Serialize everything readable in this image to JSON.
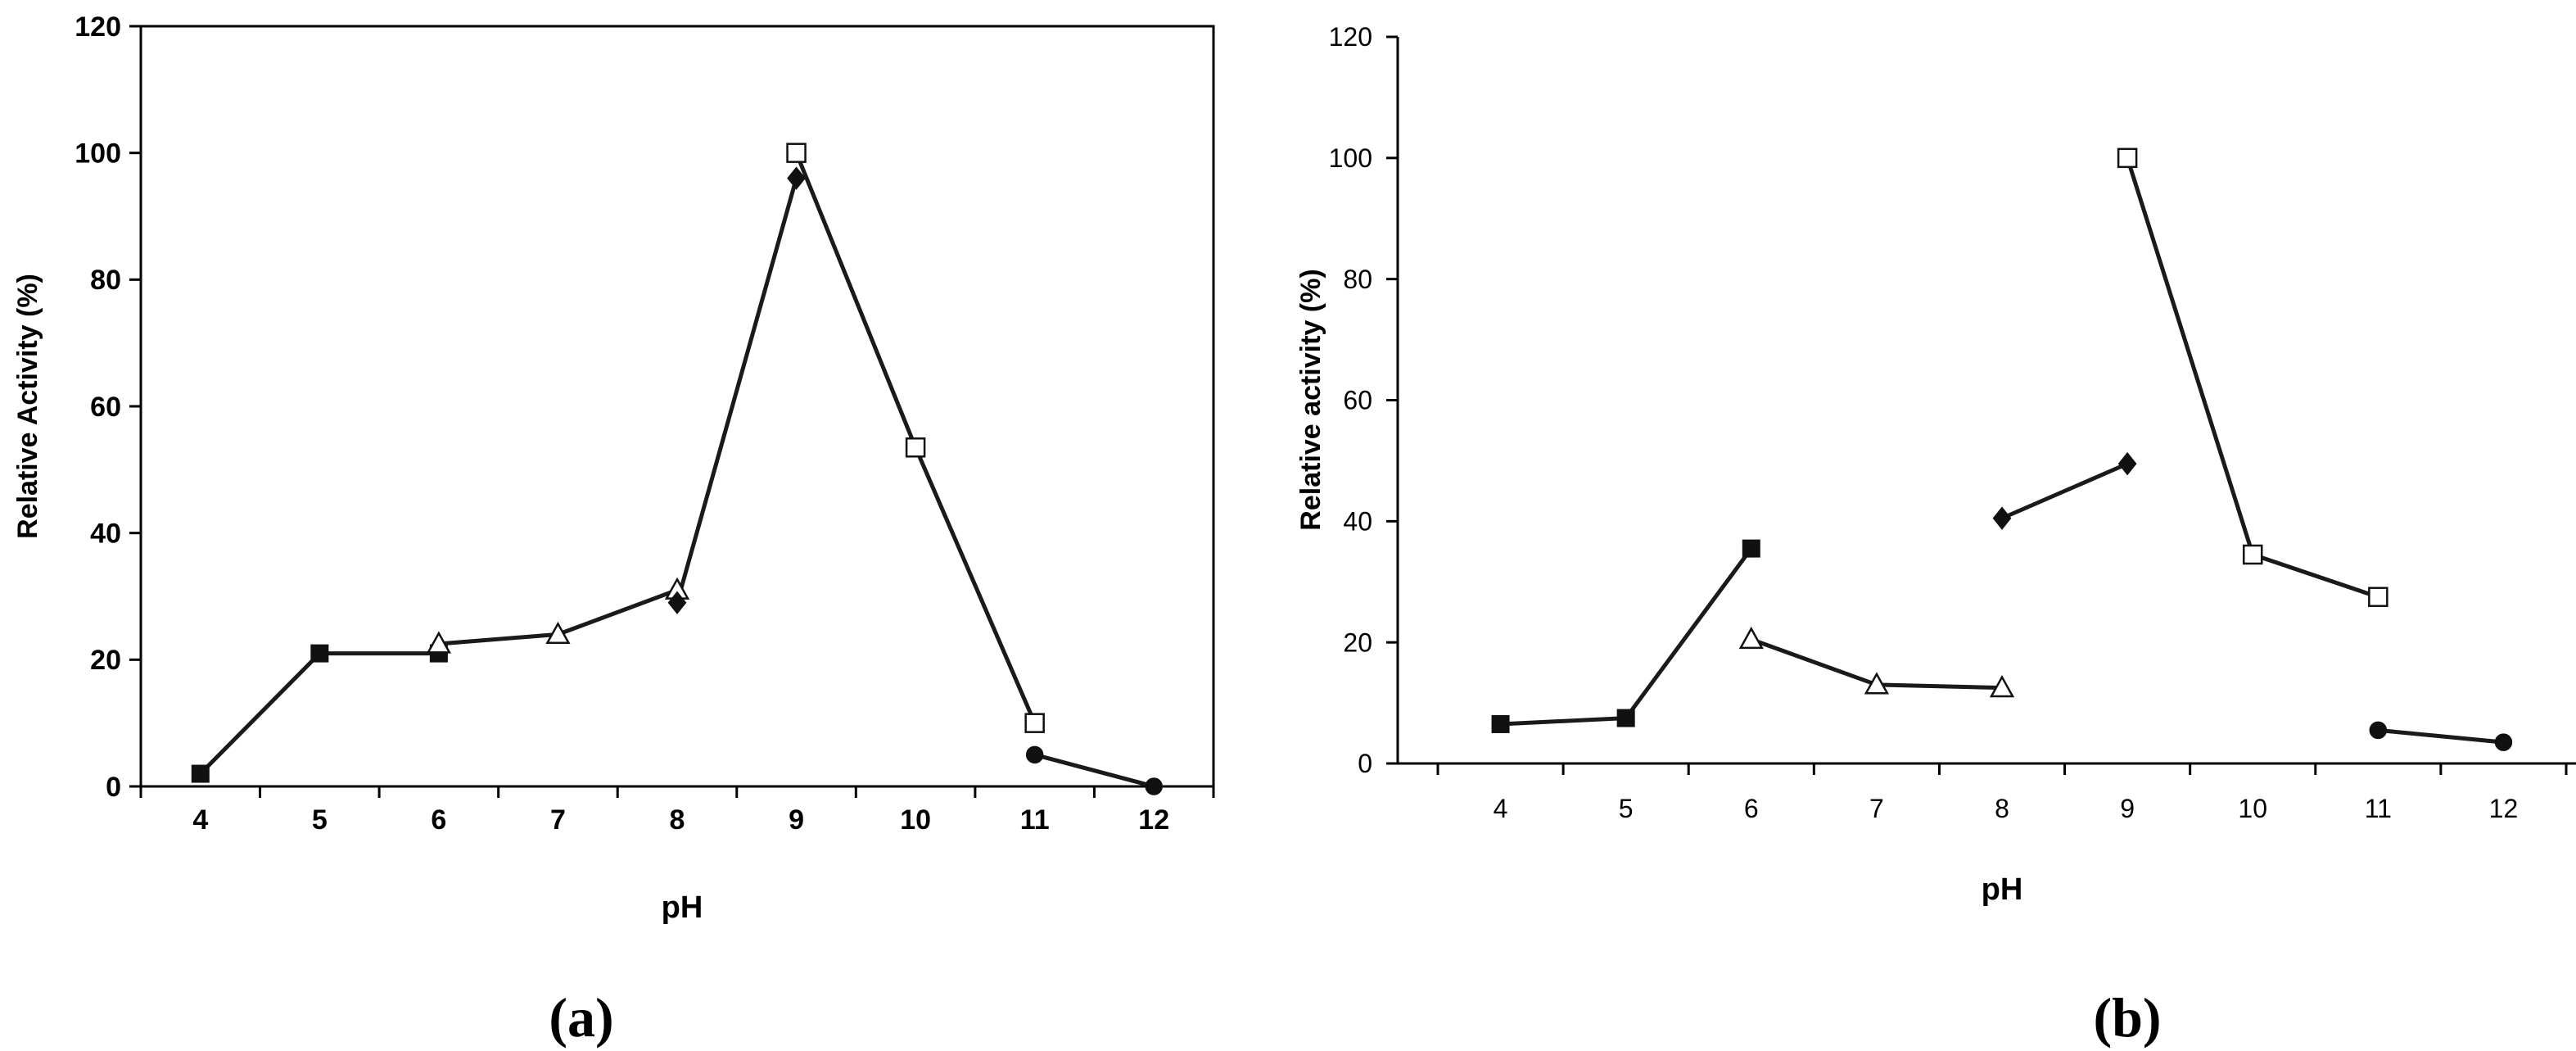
{
  "panel_labels": [
    "(a)",
    "(b)"
  ],
  "chart_data": [
    {
      "type": "line",
      "panel": "(a)",
      "xlabel": "pH",
      "ylabel": "Relative Activity (%)",
      "xticks": [
        "4",
        "5",
        "6",
        "7",
        "8",
        "9",
        "10",
        "11",
        "12"
      ],
      "yticks": [
        "0",
        "20",
        "40",
        "60",
        "80",
        "100",
        "120"
      ],
      "xlim": [
        3.5,
        12.5
      ],
      "ylim": [
        0,
        120
      ],
      "frame": "full box",
      "series": [
        {
          "marker": "filled-square",
          "points": [
            [
              4,
              2
            ],
            [
              5,
              21
            ],
            [
              6,
              21
            ]
          ]
        },
        {
          "marker": "open-triangle",
          "points": [
            [
              6,
              22.5
            ],
            [
              7,
              24
            ],
            [
              8,
              31
            ]
          ]
        },
        {
          "marker": "filled-diamond",
          "points": [
            [
              8,
              29
            ],
            [
              9,
              96
            ]
          ]
        },
        {
          "marker": "open-square",
          "points": [
            [
              9,
              100
            ],
            [
              10,
              53.5
            ],
            [
              11,
              10
            ]
          ]
        },
        {
          "marker": "filled-circle",
          "points": [
            [
              11,
              5
            ],
            [
              12,
              0
            ]
          ]
        }
      ]
    },
    {
      "type": "line",
      "panel": "(b)",
      "xlabel": "pH",
      "ylabel": "Relative activity (%)",
      "xticks": [
        "4",
        "5",
        "6",
        "7",
        "8",
        "9",
        "10",
        "11",
        "12"
      ],
      "yticks": [
        "0",
        "20",
        "40",
        "60",
        "80",
        "100",
        "120"
      ],
      "xlim": [
        3.5,
        12.5
      ],
      "ylim": [
        0,
        120
      ],
      "frame": "left and bottom axes",
      "series": [
        {
          "marker": "filled-square",
          "points": [
            [
              4,
              6.5
            ],
            [
              5,
              7.5
            ],
            [
              6,
              35.5
            ]
          ]
        },
        {
          "marker": "open-triangle",
          "points": [
            [
              6,
              20.5
            ],
            [
              7,
              13
            ],
            [
              8,
              12.5
            ]
          ]
        },
        {
          "marker": "filled-diamond",
          "points": [
            [
              8,
              40.5
            ],
            [
              9,
              49.5
            ]
          ]
        },
        {
          "marker": "open-square",
          "points": [
            [
              9,
              100
            ],
            [
              10,
              34.5
            ],
            [
              11,
              27.5
            ]
          ]
        },
        {
          "marker": "filled-circle",
          "points": [
            [
              11,
              5.5
            ],
            [
              12,
              3.5
            ]
          ]
        }
      ]
    }
  ]
}
